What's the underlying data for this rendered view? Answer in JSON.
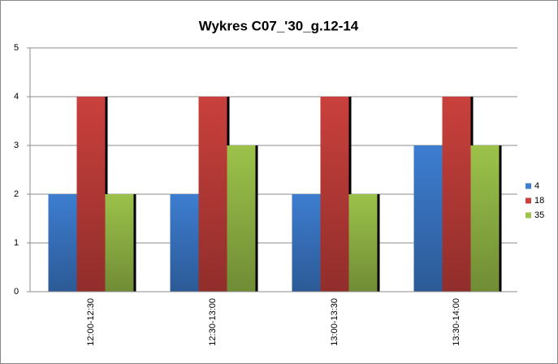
{
  "chart_data": {
    "type": "bar",
    "title": "Wykres C07_'30_g.12-14",
    "categories": [
      "12:00-12:30",
      "12:30-13:00",
      "13:00-13:30",
      "13:30-14:00"
    ],
    "series": [
      {
        "name": "4",
        "color": "#3d7dd0",
        "values": [
          2,
          2,
          2,
          3
        ]
      },
      {
        "name": "18",
        "color": "#c9403c",
        "values": [
          4,
          4,
          4,
          4
        ]
      },
      {
        "name": "35",
        "color": "#9cc24a",
        "values": [
          2,
          3,
          2,
          3
        ]
      }
    ],
    "ylim": [
      0,
      5
    ],
    "yticks": [
      0,
      1,
      2,
      3,
      4,
      5
    ],
    "grid": true,
    "legend": "right"
  }
}
